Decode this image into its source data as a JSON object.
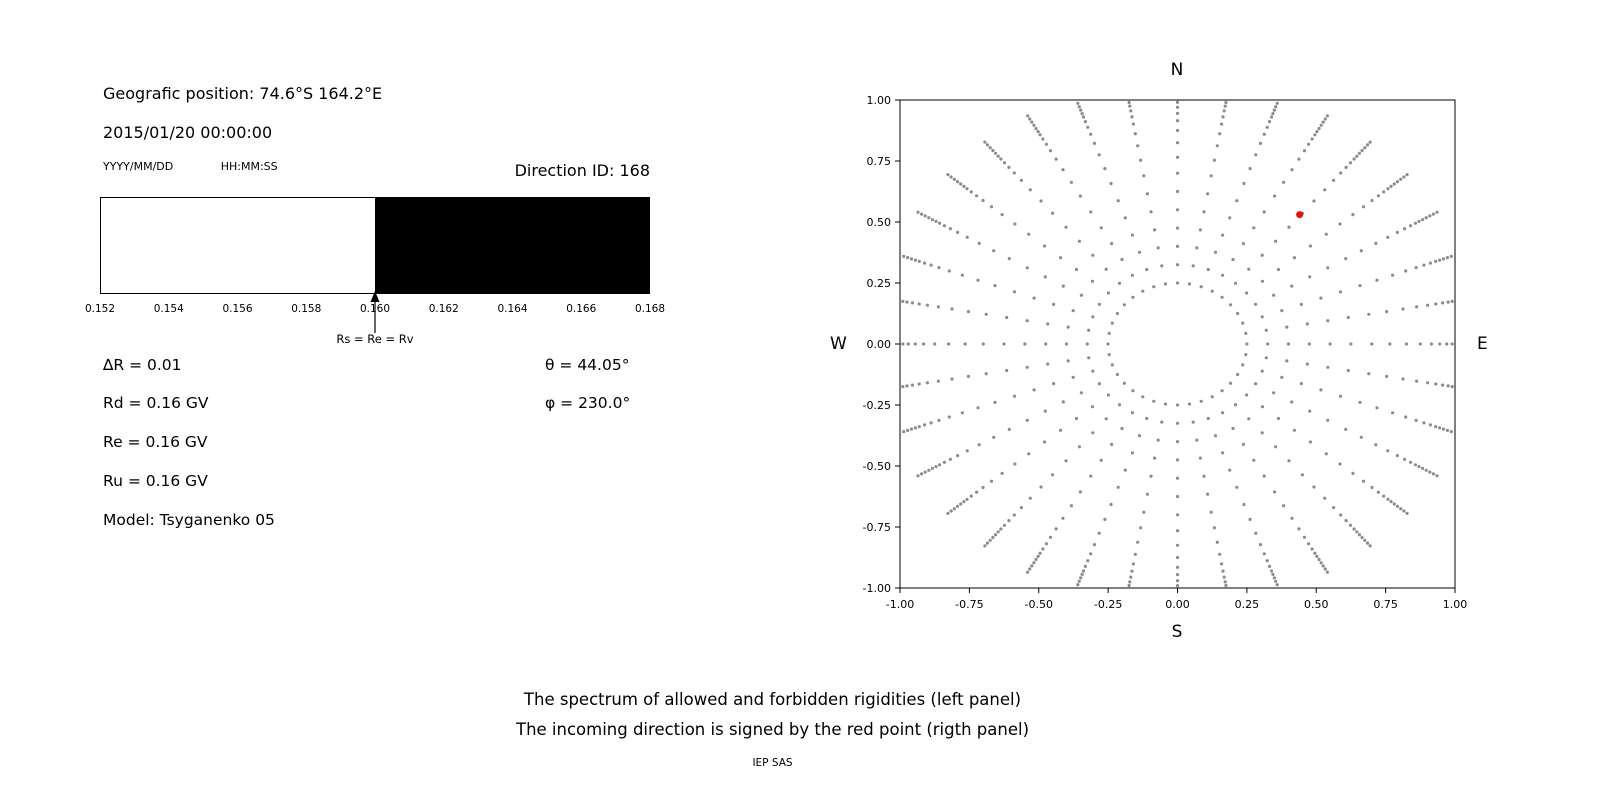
{
  "left_panel": {
    "geo_position": "Geografic position: 74.6°S 164.2°E",
    "datetime": "2015/01/20 00:00:00",
    "date_format": "YYYY/MM/DD",
    "time_format": "HH:MM:SS",
    "direction_id": "Direction ID: 168",
    "arrow_label": "Rs = Re = Rv",
    "params_left": [
      "∆R = 0.01",
      "Rd = 0.16 GV",
      "Re = 0.16 GV",
      "Ru = 0.16 GV",
      "Model: Tsyganenko 05"
    ],
    "params_right": [
      "θ = 44.05°",
      "φ = 230.0°"
    ]
  },
  "right_panel": {
    "compass": {
      "top": "N",
      "bottom": "S",
      "left": "W",
      "right": "E"
    }
  },
  "captions": [
    "The spectrum of allowed and forbidden rigidities (left panel)",
    "The incoming direction is signed by the red point (rigth panel)"
  ],
  "credit": "IEP SAS",
  "chart_data": [
    {
      "type": "area",
      "title": "Rigidity spectrum",
      "xlim": [
        0.152,
        0.168
      ],
      "x_ticks": [
        "0.152",
        "0.154",
        "0.156",
        "0.158",
        "0.160",
        "0.162",
        "0.164",
        "0.166",
        "0.168"
      ],
      "regions": [
        {
          "name": "allowed",
          "from": 0.152,
          "to": 0.16,
          "color": "#ffffff"
        },
        {
          "name": "forbidden",
          "from": 0.16,
          "to": 0.168,
          "color": "#000000"
        }
      ],
      "marker": {
        "x": 0.16,
        "label": "Rs = Re = Rv"
      }
    },
    {
      "type": "scatter",
      "title": "Incoming direction map",
      "xlim": [
        -1,
        1
      ],
      "ylim": [
        -1,
        1
      ],
      "xticks": [
        "-1.00",
        "-0.75",
        "-0.50",
        "-0.25",
        "0.00",
        "0.25",
        "0.50",
        "0.75",
        "1.00"
      ],
      "yticks": [
        "-1.00",
        "-0.75",
        "-0.50",
        "-0.25",
        "0.00",
        "0.25",
        "0.50",
        "0.75",
        "1.00"
      ],
      "compass": {
        "north": "N",
        "south": "S",
        "west": "W",
        "east": "E"
      },
      "spokes": {
        "count": 36,
        "angle_step_deg": 10,
        "radii": [
          0.25,
          0.325,
          0.4,
          0.475,
          0.55,
          0.625,
          0.7,
          0.765,
          0.825,
          0.875,
          0.915,
          0.945,
          0.97,
          0.99,
          1.005,
          1.02,
          1.035,
          1.05,
          1.065,
          1.08
        ]
      },
      "red_point": {
        "x": 0.44,
        "y": 0.53
      },
      "dot_color": "#8c8c8c",
      "red_color": "#e3120b",
      "grid": false,
      "legend": "none"
    }
  ]
}
